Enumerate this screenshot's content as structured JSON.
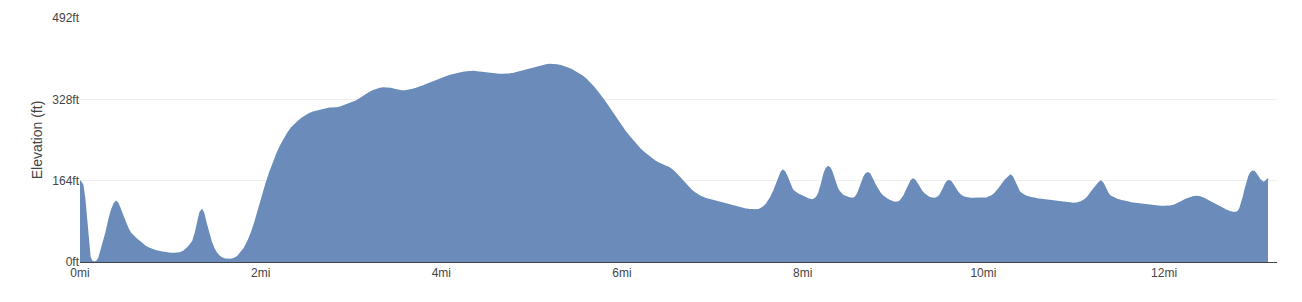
{
  "chart_data": {
    "type": "area",
    "ylabel": "Elevation (ft)",
    "color": "#6b8cba",
    "grid": "y",
    "xlim": [
      0,
      13.25
    ],
    "ylim": [
      0,
      492
    ],
    "xticks": [
      {
        "value": 0,
        "label": "0mi"
      },
      {
        "value": 2,
        "label": "2mi"
      },
      {
        "value": 4,
        "label": "4mi"
      },
      {
        "value": 6,
        "label": "6mi"
      },
      {
        "value": 8,
        "label": "8mi"
      },
      {
        "value": 10,
        "label": "10mi"
      },
      {
        "value": 12,
        "label": "12mi"
      }
    ],
    "yticks": [
      {
        "value": 0,
        "label": "0ft"
      },
      {
        "value": 164,
        "label": "164ft"
      },
      {
        "value": 328,
        "label": "328ft"
      },
      {
        "value": 492,
        "label": "492ft"
      }
    ],
    "x": [
      0.0,
      0.03,
      0.05,
      0.07,
      0.09,
      0.11,
      0.13,
      0.15,
      0.17,
      0.19,
      0.21,
      0.23,
      0.26,
      0.29,
      0.32,
      0.35,
      0.38,
      0.4,
      0.42,
      0.44,
      0.46,
      0.48,
      0.5,
      0.53,
      0.56,
      0.6,
      0.64,
      0.68,
      0.72,
      0.76,
      0.8,
      0.85,
      0.9,
      0.95,
      1.0,
      1.05,
      1.1,
      1.15,
      1.2,
      1.25,
      1.28,
      1.31,
      1.33,
      1.35,
      1.37,
      1.39,
      1.42,
      1.45,
      1.48,
      1.51,
      1.54,
      1.57,
      1.6,
      1.63,
      1.66,
      1.69,
      1.72,
      1.75,
      1.78,
      1.82,
      1.86,
      1.9,
      1.94,
      1.98,
      2.02,
      2.06,
      2.1,
      2.14,
      2.18,
      2.22,
      2.26,
      2.3,
      2.34,
      2.38,
      2.42,
      2.46,
      2.5,
      2.54,
      2.58,
      2.62,
      2.66,
      2.7,
      2.73,
      2.76,
      2.79,
      2.82,
      2.85,
      2.88,
      2.91,
      2.94,
      2.97,
      3.0,
      3.04,
      3.08,
      3.12,
      3.16,
      3.2,
      3.24,
      3.28,
      3.32,
      3.36,
      3.4,
      3.44,
      3.48,
      3.52,
      3.56,
      3.6,
      3.64,
      3.68,
      3.72,
      3.76,
      3.8,
      3.84,
      3.88,
      3.92,
      3.96,
      4.0,
      4.04,
      4.08,
      4.12,
      4.16,
      4.2,
      4.24,
      4.28,
      4.32,
      4.36,
      4.4,
      4.44,
      4.48,
      4.52,
      4.56,
      4.6,
      4.64,
      4.68,
      4.72,
      4.76,
      4.8,
      4.84,
      4.88,
      4.92,
      4.96,
      5.0,
      5.04,
      5.08,
      5.12,
      5.16,
      5.2,
      5.24,
      5.28,
      5.32,
      5.36,
      5.4,
      5.44,
      5.48,
      5.52,
      5.56,
      5.6,
      5.64,
      5.68,
      5.72,
      5.76,
      5.8,
      5.84,
      5.88,
      5.92,
      5.96,
      6.0,
      6.04,
      6.08,
      6.12,
      6.16,
      6.2,
      6.24,
      6.28,
      6.32,
      6.36,
      6.4,
      6.44,
      6.48,
      6.52,
      6.56,
      6.6,
      6.64,
      6.68,
      6.72,
      6.76,
      6.8,
      6.84,
      6.88,
      6.92,
      6.96,
      7.0,
      7.04,
      7.08,
      7.12,
      7.16,
      7.2,
      7.24,
      7.28,
      7.32,
      7.36,
      7.4,
      7.44,
      7.48,
      7.52,
      7.56,
      7.6,
      7.64,
      7.68,
      7.72,
      7.74,
      7.76,
      7.78,
      7.8,
      7.82,
      7.84,
      7.86,
      7.88,
      7.9,
      7.92,
      7.94,
      7.96,
      7.98,
      8.0,
      8.02,
      8.04,
      8.06,
      8.08,
      8.1,
      8.12,
      8.14,
      8.16,
      8.18,
      8.2,
      8.22,
      8.24,
      8.26,
      8.28,
      8.3,
      8.32,
      8.34,
      8.36,
      8.38,
      8.4,
      8.42,
      8.44,
      8.46,
      8.48,
      8.5,
      8.52,
      8.54,
      8.56,
      8.58,
      8.6,
      8.62,
      8.64,
      8.66,
      8.68,
      8.7,
      8.72,
      8.74,
      8.76,
      8.78,
      8.8,
      8.82,
      8.84,
      8.86,
      8.88,
      8.9,
      8.92,
      8.94,
      8.96,
      8.98,
      9.0,
      9.02,
      9.04,
      9.06,
      9.08,
      9.1,
      9.12,
      9.14,
      9.16,
      9.18,
      9.2,
      9.22,
      9.24,
      9.26,
      9.28,
      9.3,
      9.32,
      9.34,
      9.36,
      9.38,
      9.4,
      9.42,
      9.44,
      9.46,
      9.48,
      9.5,
      9.52,
      9.54,
      9.56,
      9.58,
      9.6,
      9.62,
      9.64,
      9.66,
      9.68,
      9.7,
      9.72,
      9.74,
      9.76,
      9.78,
      9.8,
      9.82,
      9.84,
      9.86,
      9.88,
      9.9,
      9.92,
      9.94,
      9.96,
      9.98,
      10.0,
      10.04,
      10.08,
      10.12,
      10.16,
      10.2,
      10.24,
      10.28,
      10.3,
      10.32,
      10.34,
      10.36,
      10.38,
      10.4,
      10.44,
      10.48,
      10.52,
      10.56,
      10.6,
      10.64,
      10.68,
      10.72,
      10.76,
      10.8,
      10.84,
      10.88,
      10.92,
      10.96,
      11.0,
      11.04,
      11.08,
      11.12,
      11.16,
      11.2,
      11.24,
      11.28,
      11.3,
      11.32,
      11.34,
      11.36,
      11.38,
      11.4,
      11.44,
      11.48,
      11.52,
      11.56,
      11.6,
      11.64,
      11.68,
      11.72,
      11.76,
      11.8,
      11.84,
      11.88,
      11.92,
      11.96,
      12.0,
      12.04,
      12.08,
      12.12,
      12.16,
      12.2,
      12.24,
      12.28,
      12.32,
      12.36,
      12.4,
      12.44,
      12.48,
      12.52,
      12.56,
      12.6,
      12.64,
      12.68,
      12.72,
      12.76,
      12.8,
      12.82,
      12.84,
      12.86,
      12.88,
      12.9,
      12.92,
      12.94,
      12.96,
      12.98,
      13.0,
      13.02,
      13.04,
      13.06,
      13.08,
      13.1,
      13.12,
      13.15
    ],
    "values": [
      164,
      155,
      130,
      90,
      40,
      10,
      2,
      0,
      0,
      2,
      8,
      20,
      40,
      60,
      85,
      105,
      118,
      122,
      118,
      110,
      100,
      90,
      80,
      68,
      58,
      50,
      44,
      38,
      32,
      28,
      25,
      22,
      20,
      18,
      17,
      17,
      18,
      22,
      30,
      42,
      60,
      85,
      100,
      105,
      98,
      82,
      60,
      42,
      28,
      18,
      12,
      8,
      6,
      5,
      5,
      6,
      8,
      12,
      18,
      28,
      42,
      60,
      82,
      108,
      135,
      158,
      180,
      200,
      218,
      234,
      248,
      260,
      270,
      278,
      284,
      290,
      295,
      299,
      302,
      304,
      306,
      308,
      309,
      310,
      310,
      310,
      311,
      312,
      314,
      316,
      318,
      320,
      323,
      327,
      332,
      337,
      341,
      345,
      348,
      350,
      351,
      351,
      350,
      348,
      346,
      345,
      345,
      346,
      348,
      350,
      352,
      355,
      358,
      361,
      364,
      367,
      370,
      373,
      375,
      377,
      379,
      381,
      382,
      383,
      384,
      384,
      383,
      382,
      381,
      380,
      379,
      378,
      378,
      378,
      378,
      379,
      380,
      382,
      384,
      386,
      388,
      390,
      392,
      394,
      396,
      397,
      398,
      398,
      397,
      396,
      394,
      391,
      388,
      384,
      380,
      375,
      369,
      362,
      354,
      345,
      336,
      326,
      315,
      304,
      293,
      282,
      272,
      262,
      253,
      244,
      236,
      228,
      221,
      215,
      209,
      204,
      200,
      196,
      193,
      190,
      185,
      178,
      170,
      161,
      153,
      146,
      140,
      135,
      131,
      128,
      126,
      124,
      122,
      120,
      118,
      116,
      114,
      112,
      110,
      108,
      107,
      106,
      105,
      105,
      106,
      110,
      117,
      128,
      143,
      160,
      172,
      180,
      185,
      182,
      175,
      165,
      155,
      148,
      143,
      140,
      138,
      136,
      134,
      132,
      130,
      128,
      127,
      126,
      125,
      126,
      128,
      132,
      140,
      152,
      167,
      180,
      188,
      192,
      190,
      183,
      172,
      160,
      150,
      143,
      138,
      135,
      133,
      131,
      130,
      129,
      128,
      128,
      130,
      135,
      143,
      153,
      164,
      172,
      178,
      180,
      178,
      172,
      164,
      156,
      149,
      143,
      138,
      134,
      131,
      128,
      126,
      124,
      122,
      121,
      120,
      120,
      121,
      123,
      127,
      133,
      141,
      150,
      158,
      164,
      167,
      165,
      160,
      153,
      147,
      142,
      138,
      135,
      132,
      130,
      129,
      128,
      128,
      129,
      131,
      135,
      141,
      149,
      157,
      162,
      164,
      162,
      157,
      151,
      145,
      140,
      136,
      133,
      131,
      130,
      129,
      128,
      128,
      128,
      128,
      128,
      128,
      128,
      128,
      128,
      129,
      132,
      137,
      145,
      155,
      165,
      172,
      175,
      172,
      165,
      156,
      148,
      141,
      136,
      132,
      130,
      128,
      127,
      126,
      125,
      124,
      123,
      122,
      121,
      120,
      119,
      118,
      118,
      119,
      121,
      125,
      132,
      142,
      152,
      160,
      163,
      160,
      153,
      145,
      138,
      133,
      129,
      126,
      124,
      122,
      120,
      119,
      118,
      117,
      116,
      115,
      114,
      113,
      112,
      112,
      112,
      112,
      113,
      115,
      118,
      122,
      126,
      129,
      131,
      132,
      131,
      128,
      124,
      120,
      116,
      112,
      108,
      105,
      102,
      100,
      100,
      102,
      108,
      118,
      132,
      148,
      162,
      173,
      180,
      183,
      182,
      178,
      172,
      166,
      162,
      160,
      162,
      168
    ]
  }
}
